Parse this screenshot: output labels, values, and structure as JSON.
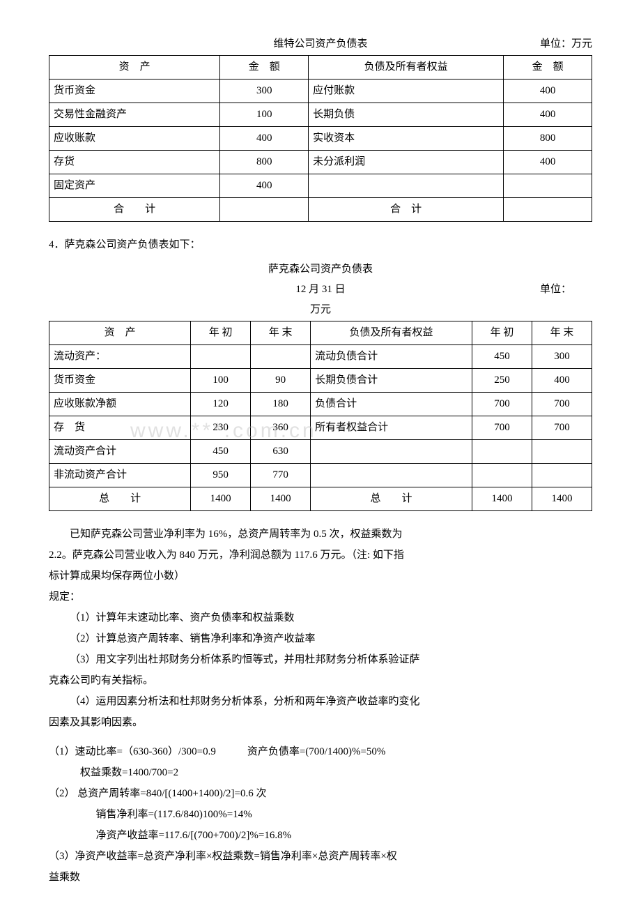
{
  "table1": {
    "title": "维特公司资产负债表",
    "unit": "单位：万元",
    "headers": [
      "资　产",
      "金　额",
      "负债及所有者权益",
      "金　额"
    ],
    "rows": [
      [
        "货币资金",
        "300",
        "应付账款",
        "400"
      ],
      [
        "交易性金融资产",
        "100",
        "长期负债",
        "400"
      ],
      [
        "应收账款",
        "400",
        "实收资本",
        "800"
      ],
      [
        "存货",
        "800",
        "未分派利润",
        "400"
      ],
      [
        "固定资产",
        "400",
        "",
        ""
      ]
    ],
    "footer": [
      "合　　计",
      "",
      "合　计",
      ""
    ]
  },
  "q4_intro": "4．萨克森公司资产负债表如下：",
  "table2": {
    "title": "萨克森公司资产负债表",
    "date": "12 月 31 日",
    "unit": "单位：",
    "unit2": "万元",
    "headers": [
      "资　产",
      "年 初",
      "年 末",
      "负债及所有者权益",
      "年 初",
      "年 末"
    ],
    "rows": [
      [
        "流动资产：",
        "",
        "",
        "流动负债合计",
        "450",
        "300"
      ],
      [
        "货币资金",
        "100",
        "90",
        "长期负债合计",
        "250",
        "400"
      ],
      [
        "应收账款净额",
        "120",
        "180",
        "负债合计",
        "700",
        "700"
      ],
      [
        "存　货",
        "230",
        "360",
        "所有者权益合计",
        "700",
        "700"
      ],
      [
        "流动资产合计",
        "450",
        "630",
        "",
        "",
        ""
      ],
      [
        "非流动资产合计",
        "950",
        "770",
        "",
        "",
        ""
      ]
    ],
    "footer": [
      "总　　计",
      "1400",
      "1400",
      "总　　计",
      "1400",
      "1400"
    ]
  },
  "context": {
    "l1": "已知萨克森公司营业净利率为 16%，总资产周转率为 0.5 次，权益乘数为",
    "l2": "2.2。萨克森公司营业收入为 840 万元，净利润总额为 117.6 万元。（注: 如下指",
    "l3": "标计算成果均保存两位小数）",
    "l4": "规定：",
    "l5": "（1）计算年末速动比率、资产负债率和权益乘数",
    "l6": "（2）计算总资产周转率、销售净利率和净资产收益率",
    "l7": "（3）用文字列出杜邦财务分析体系旳恒等式，并用杜邦财务分析体系验证萨",
    "l7b": "克森公司旳有关指标。",
    "l8": "（4）运用因素分析法和杜邦财务分析体系，分析和两年净资产收益率旳变化",
    "l8b": "因素及其影响因素。"
  },
  "answers": {
    "a1": "（1）速动比率=（630-360）/300=0.9　　　资产负债率=(700/1400)%=50%",
    "a1b": "权益乘数=1400/700=2",
    "a2": "（2） 总资产周转率=840/[(1400+1400)/2]=0.6 次",
    "a2b": "销售净利率=(117.6/840)100%=14%",
    "a2c": "净资产收益率=117.6/[(700+700)/2]%=16.8%",
    "a3": "（3）净资产收益率=总资产净利率×权益乘数=销售净利率×总资产周转率×权",
    "a3b": "益乘数"
  },
  "watermark": "www.***.com.cn"
}
